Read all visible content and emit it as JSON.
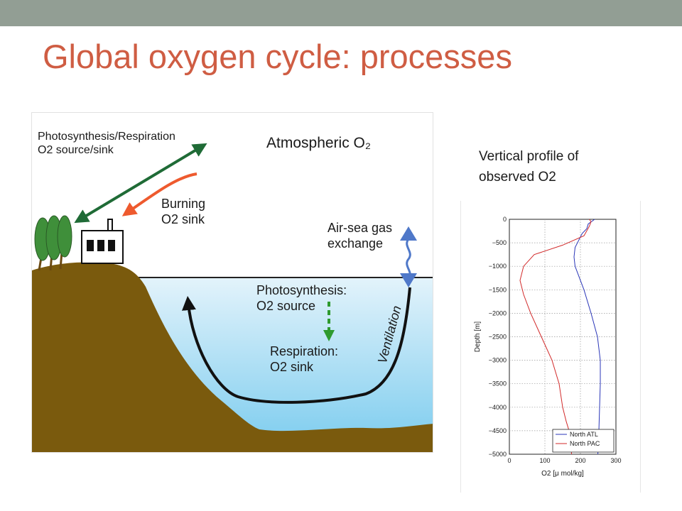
{
  "slide": {
    "title": "Global oxygen cycle: processes"
  },
  "diagram": {
    "labels": {
      "photo_resp_line1": "Photosynthesis/Respiration",
      "photo_resp_line2": "O2 source/sink",
      "atmospheric": "Atmospheric O₂",
      "burning_line1": "Burning",
      "burning_line2": "O2 sink",
      "airsea_line1": "Air-sea gas",
      "airsea_line2": "exchange",
      "photosynthesis_line1": "Photosynthesis:",
      "photosynthesis_line2": "O2 source",
      "respiration_line1": "Respiration:",
      "respiration_line2": "O2 sink",
      "ventilation": "Ventilation"
    },
    "colors": {
      "land": "#7a5a0d",
      "water_top": "#e3f3fb",
      "water_bottom": "#79cbee",
      "trees": "#3f8f3a",
      "photo_arrow": "#1f6b36",
      "burning_arrow": "#ee5a2e",
      "airsea_arrow": "#4f78c9",
      "respiration_arrow": "#2e9a2e",
      "circulation_arrow": "#111111"
    }
  },
  "profile": {
    "caption_line1": "Vertical profile of",
    "caption_line2": "observed O2",
    "chart_data": {
      "type": "line",
      "xlabel": "O2 [μ mol/kg]",
      "ylabel": "Depth [m]",
      "xlim": [
        0,
        300
      ],
      "ylim": [
        -5000,
        0
      ],
      "xticks": [
        0,
        100,
        200,
        300
      ],
      "yticks": [
        0,
        -500,
        -1000,
        -1500,
        -2000,
        -2500,
        -3000,
        -3500,
        -4000,
        -4500,
        -5000
      ],
      "grid": true,
      "legend_position": "bottom-right",
      "series": [
        {
          "name": "North ATL",
          "color": "#2a36b8",
          "x": [
            240,
            222,
            218,
            205,
            195,
            185,
            182,
            185,
            195,
            210,
            230,
            248,
            256,
            256,
            254,
            252,
            251,
            250,
            249
          ],
          "y": [
            0,
            -100,
            -200,
            -300,
            -450,
            -600,
            -800,
            -1000,
            -1200,
            -1500,
            -2000,
            -2500,
            -3000,
            -3500,
            -4000,
            -4500,
            -4800,
            -4900,
            -5000
          ]
        },
        {
          "name": "North PAC",
          "color": "#d22a2a",
          "x": [
            225,
            230,
            225,
            210,
            150,
            70,
            40,
            30,
            40,
            60,
            90,
            120,
            140,
            150,
            160,
            168,
            172,
            174,
            175
          ],
          "y": [
            0,
            -50,
            -150,
            -350,
            -550,
            -750,
            -1000,
            -1300,
            -1600,
            -2000,
            -2500,
            -3000,
            -3500,
            -4000,
            -4300,
            -4500,
            -4700,
            -4850,
            -5000
          ]
        }
      ]
    }
  }
}
